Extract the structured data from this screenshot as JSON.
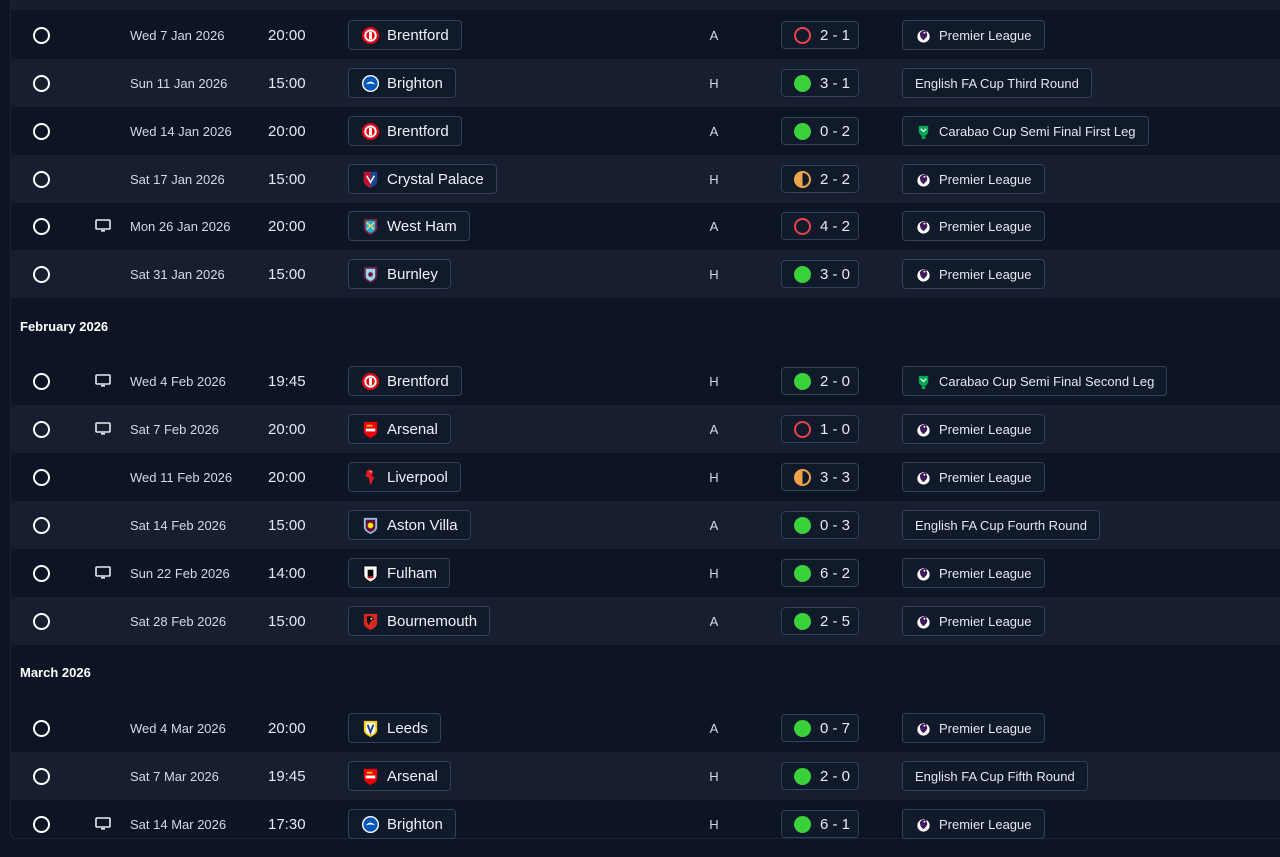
{
  "sections": [
    {
      "month": ""
    },
    {
      "month": "February 2026"
    },
    {
      "month": "March 2026"
    }
  ],
  "fixtures": [
    {
      "date": "Wed 7 Jan 2026",
      "time": "20:00",
      "team": "Brentford",
      "crest": "brentford",
      "venue": "A",
      "score": "2 - 1",
      "result": "loss",
      "competition": "Premier League",
      "comp_icon": "pl",
      "tv": false
    },
    {
      "date": "Sun 11 Jan 2026",
      "time": "15:00",
      "team": "Brighton",
      "crest": "brighton",
      "venue": "H",
      "score": "3 - 1",
      "result": "win",
      "competition": "English FA Cup Third Round",
      "comp_icon": "none",
      "tv": false
    },
    {
      "date": "Wed 14 Jan 2026",
      "time": "20:00",
      "team": "Brentford",
      "crest": "brentford",
      "venue": "A",
      "score": "0 - 2",
      "result": "win",
      "competition": "Carabao Cup Semi Final First Leg",
      "comp_icon": "carabao",
      "tv": false
    },
    {
      "date": "Sat 17 Jan 2026",
      "time": "15:00",
      "team": "Crystal Palace",
      "crest": "palace",
      "venue": "H",
      "score": "2 - 2",
      "result": "draw",
      "competition": "Premier League",
      "comp_icon": "pl",
      "tv": false
    },
    {
      "date": "Mon 26 Jan 2026",
      "time": "20:00",
      "team": "West Ham",
      "crest": "westham",
      "venue": "A",
      "score": "4 - 2",
      "result": "loss",
      "competition": "Premier League",
      "comp_icon": "pl",
      "tv": true
    },
    {
      "date": "Sat 31 Jan 2026",
      "time": "15:00",
      "team": "Burnley",
      "crest": "burnley",
      "venue": "H",
      "score": "3 - 0",
      "result": "win",
      "competition": "Premier League",
      "comp_icon": "pl",
      "tv": false
    },
    {
      "date": "Wed 4 Feb 2026",
      "time": "19:45",
      "team": "Brentford",
      "crest": "brentford",
      "venue": "H",
      "score": "2 - 0",
      "result": "win",
      "competition": "Carabao Cup Semi Final Second Leg",
      "comp_icon": "carabao",
      "tv": true
    },
    {
      "date": "Sat 7 Feb 2026",
      "time": "20:00",
      "team": "Arsenal",
      "crest": "arsenal",
      "venue": "A",
      "score": "1 - 0",
      "result": "loss",
      "competition": "Premier League",
      "comp_icon": "pl",
      "tv": true
    },
    {
      "date": "Wed 11 Feb 2026",
      "time": "20:00",
      "team": "Liverpool",
      "crest": "liverpool",
      "venue": "H",
      "score": "3 - 3",
      "result": "draw",
      "competition": "Premier League",
      "comp_icon": "pl",
      "tv": false
    },
    {
      "date": "Sat 14 Feb 2026",
      "time": "15:00",
      "team": "Aston Villa",
      "crest": "villa",
      "venue": "A",
      "score": "0 - 3",
      "result": "win",
      "competition": "English FA Cup Fourth Round",
      "comp_icon": "none",
      "tv": false
    },
    {
      "date": "Sun 22 Feb 2026",
      "time": "14:00",
      "team": "Fulham",
      "crest": "fulham",
      "venue": "H",
      "score": "6 - 2",
      "result": "win",
      "competition": "Premier League",
      "comp_icon": "pl",
      "tv": true
    },
    {
      "date": "Sat 28 Feb 2026",
      "time": "15:00",
      "team": "Bournemouth",
      "crest": "bournemouth",
      "venue": "A",
      "score": "2 - 5",
      "result": "win",
      "competition": "Premier League",
      "comp_icon": "pl",
      "tv": false
    },
    {
      "date": "Wed 4 Mar 2026",
      "time": "20:00",
      "team": "Leeds",
      "crest": "leeds",
      "venue": "A",
      "score": "0 - 7",
      "result": "win",
      "competition": "Premier League",
      "comp_icon": "pl",
      "tv": false
    },
    {
      "date": "Sat 7 Mar 2026",
      "time": "19:45",
      "team": "Arsenal",
      "crest": "arsenal",
      "venue": "H",
      "score": "2 - 0",
      "result": "win",
      "competition": "English FA Cup Fifth Round",
      "comp_icon": "none",
      "tv": false
    },
    {
      "date": "Sat 14 Mar 2026",
      "time": "17:30",
      "team": "Brighton",
      "crest": "brighton",
      "venue": "H",
      "score": "6 - 1",
      "result": "win",
      "competition": "Premier League",
      "comp_icon": "pl",
      "tv": true
    }
  ],
  "colors": {
    "win": "#3ad13a",
    "loss": "#e8434f",
    "draw": "#f0a44a",
    "background": "#0d1424",
    "row_alt": "#161e2f"
  },
  "icons": {
    "select": "circle-select-icon",
    "tv": "tv-broadcast-icon",
    "premier_league": "premier-league-lion-icon",
    "carabao": "carabao-cup-icon"
  }
}
